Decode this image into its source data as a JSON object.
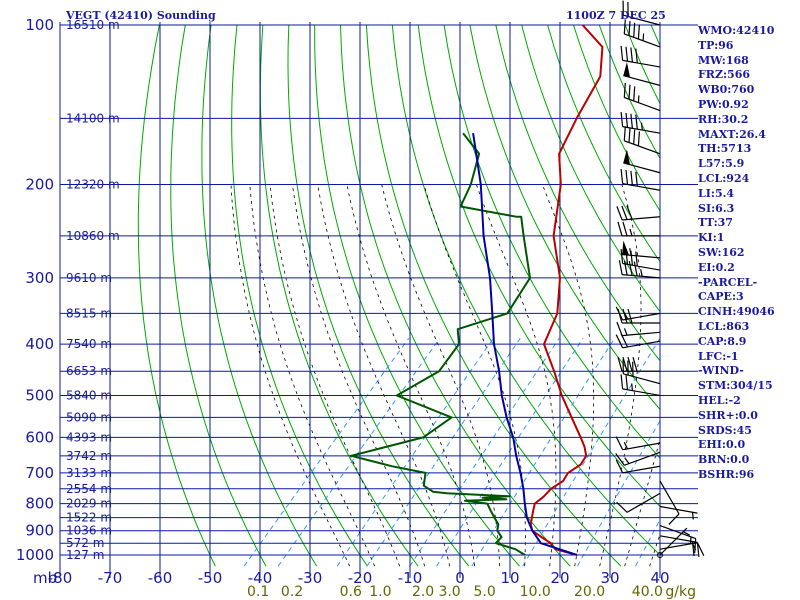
{
  "header": {
    "title": "VEGT (42410) Sounding",
    "time": "1100Z  7 DEC 25"
  },
  "indices": [
    "WMO:42410",
    "TP:96",
    "MW:168",
    "FRZ:566",
    "WB0:760",
    "PW:0.92",
    "RH:30.2",
    "MAXT:26.4",
    "TH:5713",
    "L57:5.9",
    "LCL:924",
    "LI:5.4",
    "SI:6.3",
    "TT:37",
    "KI:1",
    "SW:162",
    "EI:0.2",
    "-PARCEL-",
    "CAPE:3",
    "CINH:49046",
    "LCL:863",
    "CAP:8.9",
    "LFC:-1",
    "-WIND-",
    "STM:304/15",
    "HEL:-2",
    "SHR+:0.0",
    "SRDS:45",
    "EHI:0.0",
    "BRN:0.0",
    "BSHR:96"
  ],
  "colors": {
    "temperature": "#bb0000",
    "dewpoint": "#005500",
    "parcel": "#0000aa",
    "grid": "#0a1aa0",
    "dry_adiabat": "#00aa00",
    "moist_adiabat": "#000000",
    "mixing_ratio": "#3399ff",
    "axis_text": "#1a1aa0",
    "mixing_label": "#666600"
  },
  "chart_data": {
    "type": "line",
    "xlabel": "",
    "ylabel": "mb",
    "xlim": [
      -80,
      40
    ],
    "ylim": [
      1000,
      100
    ],
    "x_ticks": [
      -80,
      -70,
      -60,
      -50,
      -40,
      -30,
      -20,
      -10,
      0,
      10,
      20,
      30,
      40
    ],
    "x_tick_labels": [
      "-80",
      "-70",
      "-60",
      "-50",
      "-40",
      "-30",
      "-20",
      "-10",
      "0",
      "10",
      "20",
      "30",
      "40"
    ],
    "y_ticks": [
      {
        "p": 100,
        "label": "100"
      },
      {
        "p": 200,
        "label": "200"
      },
      {
        "p": 300,
        "label": "300"
      },
      {
        "p": 400,
        "label": "400"
      },
      {
        "p": 500,
        "label": "500"
      },
      {
        "p": 600,
        "label": "600"
      },
      {
        "p": 700,
        "label": "700"
      },
      {
        "p": 800,
        "label": "800"
      },
      {
        "p": 900,
        "label": "900"
      },
      {
        "p": 1000,
        "label": "1000"
      }
    ],
    "height_labels": [
      {
        "p": 100,
        "label": "16510 m"
      },
      {
        "p": 150,
        "label": "14100 m"
      },
      {
        "p": 200,
        "label": "12320 m"
      },
      {
        "p": 250,
        "label": "10860 m"
      },
      {
        "p": 300,
        "label": "9610 m"
      },
      {
        "p": 350,
        "label": "8515 m"
      },
      {
        "p": 400,
        "label": "7540 m"
      },
      {
        "p": 450,
        "label": "6653 m"
      },
      {
        "p": 500,
        "label": "5840 m"
      },
      {
        "p": 550,
        "label": "5090 m"
      },
      {
        "p": 600,
        "label": "4393 m"
      },
      {
        "p": 650,
        "label": "3742 m"
      },
      {
        "p": 700,
        "label": "3133 m"
      },
      {
        "p": 750,
        "label": "2554 m"
      },
      {
        "p": 800,
        "label": "2029 m"
      },
      {
        "p": 850,
        "label": "1522 m"
      },
      {
        "p": 900,
        "label": "1036 m"
      },
      {
        "p": 950,
        "label": "572 m"
      },
      {
        "p": 1000,
        "label": "127 m"
      }
    ],
    "mixing_ratio_labels": [
      {
        "w": 0.1,
        "label": "0.1"
      },
      {
        "w": 0.2,
        "label": "0.2"
      },
      {
        "w": 0.6,
        "label": "0.6"
      },
      {
        "w": 1.0,
        "label": "1.0"
      },
      {
        "w": 2.0,
        "label": "2.0"
      },
      {
        "w": 3.0,
        "label": "3.0"
      },
      {
        "w": 5.0,
        "label": "5.0"
      },
      {
        "w": 10.0,
        "label": "10.0"
      },
      {
        "w": 20.0,
        "label": "20.0"
      },
      {
        "w": 40.0,
        "label": "40.0"
      }
    ],
    "mixing_ratio_unit": "g/kg",
    "series": [
      {
        "key": "temperature",
        "points": [
          [
            1000,
            23.4
          ],
          [
            975,
            18
          ],
          [
            950,
            16
          ],
          [
            925,
            13
          ],
          [
            900,
            10
          ],
          [
            875,
            8.5
          ],
          [
            850,
            7.5
          ],
          [
            825,
            6.5
          ],
          [
            800,
            5.5
          ],
          [
            775,
            6
          ],
          [
            750,
            6
          ],
          [
            725,
            7
          ],
          [
            700,
            6.5
          ],
          [
            675,
            7.5
          ],
          [
            650,
            7
          ],
          [
            625,
            5
          ],
          [
            600,
            2.5
          ],
          [
            550,
            -3
          ],
          [
            500,
            -9
          ],
          [
            450,
            -15
          ],
          [
            400,
            -22
          ],
          [
            350,
            -25
          ],
          [
            300,
            -31
          ],
          [
            250,
            -40
          ],
          [
            200,
            -48
          ],
          [
            175,
            -54
          ],
          [
            150,
            -57
          ],
          [
            125,
            -60
          ],
          [
            110,
            -65
          ],
          [
            100,
            -73
          ]
        ]
      },
      {
        "key": "dewpoint",
        "points": [
          [
            1000,
            13
          ],
          [
            975,
            10
          ],
          [
            950,
            5
          ],
          [
            925,
            5
          ],
          [
            900,
            3
          ],
          [
            875,
            2
          ],
          [
            850,
            0
          ],
          [
            825,
            -2
          ],
          [
            800,
            -4
          ],
          [
            790,
            -9
          ],
          [
            785,
            -1
          ],
          [
            780,
            -6
          ],
          [
            775,
            -1
          ],
          [
            765,
            -14
          ],
          [
            760,
            -17
          ],
          [
            740,
            -20
          ],
          [
            700,
            -22
          ],
          [
            680,
            -30
          ],
          [
            650,
            -40
          ],
          [
            600,
            -29
          ],
          [
            550,
            -27
          ],
          [
            500,
            -42
          ],
          [
            450,
            -38
          ],
          [
            400,
            -39
          ],
          [
            375,
            -42
          ],
          [
            350,
            -35
          ],
          [
            300,
            -37
          ],
          [
            250,
            -46
          ],
          [
            230,
            -50
          ],
          [
            230,
            -51
          ],
          [
            220,
            -64
          ],
          [
            200,
            -66
          ],
          [
            175,
            -70
          ],
          [
            160,
            -77
          ]
        ]
      },
      {
        "key": "parcel",
        "points": [
          [
            1000,
            23.4
          ],
          [
            950,
            14
          ],
          [
            900,
            10
          ],
          [
            850,
            6.5
          ],
          [
            800,
            3.5
          ],
          [
            750,
            0.5
          ],
          [
            700,
            -3
          ],
          [
            650,
            -7
          ],
          [
            600,
            -11
          ],
          [
            550,
            -16
          ],
          [
            500,
            -21
          ],
          [
            450,
            -26
          ],
          [
            400,
            -32
          ],
          [
            350,
            -38
          ],
          [
            300,
            -45
          ],
          [
            250,
            -54
          ],
          [
            200,
            -64
          ],
          [
            160,
            -75
          ]
        ]
      }
    ],
    "wind_barbs": [
      {
        "p": 100,
        "dir": 285,
        "spd": 20
      },
      {
        "p": 110,
        "dir": 290,
        "spd": 45
      },
      {
        "p": 120,
        "dir": 280,
        "spd": 40
      },
      {
        "p": 130,
        "dir": 285,
        "spd": 50
      },
      {
        "p": 145,
        "dir": 290,
        "spd": 35
      },
      {
        "p": 160,
        "dir": 280,
        "spd": 45
      },
      {
        "p": 175,
        "dir": 290,
        "spd": 40
      },
      {
        "p": 190,
        "dir": 285,
        "spd": 50
      },
      {
        "p": 205,
        "dir": 280,
        "spd": 40
      },
      {
        "p": 230,
        "dir": 265,
        "spd": 30
      },
      {
        "p": 250,
        "dir": 270,
        "spd": 25
      },
      {
        "p": 275,
        "dir": 275,
        "spd": 55
      },
      {
        "p": 290,
        "dir": 280,
        "spd": 40
      },
      {
        "p": 300,
        "dir": 275,
        "spd": 45
      },
      {
        "p": 350,
        "dir": 260,
        "spd": 15
      },
      {
        "p": 365,
        "dir": 270,
        "spd": 30
      },
      {
        "p": 380,
        "dir": 265,
        "spd": 15
      },
      {
        "p": 395,
        "dir": 260,
        "spd": 20
      },
      {
        "p": 450,
        "dir": 270,
        "spd": 40
      },
      {
        "p": 475,
        "dir": 285,
        "spd": 30
      },
      {
        "p": 500,
        "dir": 280,
        "spd": 25
      },
      {
        "p": 615,
        "dir": 260,
        "spd": 15
      },
      {
        "p": 640,
        "dir": 250,
        "spd": 15
      },
      {
        "p": 680,
        "dir": 260,
        "spd": 10
      },
      {
        "p": 725,
        "dir": 150,
        "spd": 10
      },
      {
        "p": 765,
        "dir": 240,
        "spd": 10
      },
      {
        "p": 810,
        "dir": 100,
        "spd": 5
      },
      {
        "p": 880,
        "dir": 110,
        "spd": 15
      },
      {
        "p": 920,
        "dir": 100,
        "spd": 20
      },
      {
        "p": 975,
        "dir": 80,
        "spd": 15
      },
      {
        "p": 1000,
        "dir": 45,
        "spd": 5
      }
    ]
  }
}
